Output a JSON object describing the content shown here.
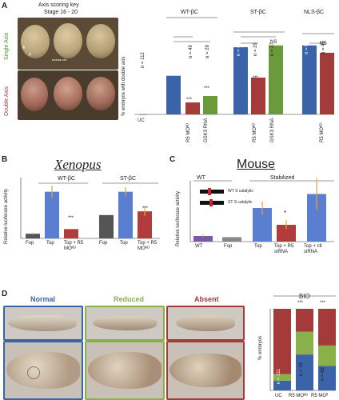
{
  "panelA": {
    "label": "A",
    "key_title": "Axis scoring key",
    "stage": "Stage 16 - 20",
    "single_axis": "Single Axis",
    "double_axis": "Double Axis",
    "orient_A": "A",
    "orient_P": "P",
    "mouse_label": "mouse ctrl",
    "ylabel": "% embryos with double axis",
    "groups": [
      "WT-βC",
      "ST-βC",
      "NLS-βC"
    ],
    "uc_label": "UC",
    "bar_labels": [
      "UC",
      "R5 MO^{KD}",
      "GSK3 RNA",
      "",
      "R5 MO^{KD}",
      "GSK3 RNA",
      "",
      "R5 MO^{KD}"
    ],
    "n_labels": [
      "n = 112",
      "n = 55",
      "n = 49",
      "n = 28",
      "n = 40",
      "n = 29",
      "n = 27",
      "n = 63",
      "n = 45"
    ],
    "sig": [
      "***",
      "***",
      "***",
      "NS",
      "NS"
    ]
  },
  "panelB": {
    "label": "B",
    "title": "Xenopus",
    "ylabel": "Relative luciferase activity",
    "group1": "WT-βC",
    "group2": "ST-βC",
    "x_labels": [
      "Fop",
      "Top",
      "Top + R5 MO^{KD}",
      "Fop",
      "Top",
      "Top + R5 MO^{KD}"
    ],
    "sig": [
      "***",
      "***"
    ]
  },
  "panelC": {
    "label": "C",
    "title": "Mouse",
    "ylabel": "Relative luciferase activity",
    "group_wt": "WT",
    "group_st": "Stabilized",
    "legend1": "WT S catalytic",
    "legend2": "ST S catalytic",
    "x_labels": [
      "WT",
      "Fop",
      "Top",
      "Top + R5 siRNA",
      "Top + ctl siRNA"
    ],
    "sig": [
      "*",
      ""
    ]
  },
  "panelD": {
    "label": "D",
    "cat_normal": "Normal",
    "cat_reduced": "Reduced",
    "cat_absent": "Absent",
    "bio": "BIO",
    "ylabel": "% embryos",
    "x_labels": [
      "UC",
      "R5 MO^{KD}",
      "R5 MO^{delta}"
    ],
    "n_labels": [
      "n = 111",
      "n = 29",
      "n = 68"
    ],
    "sig": [
      "***",
      "***"
    ],
    "colors": {
      "normal": "#3b63a7",
      "reduced": "#8ab04a",
      "absent": "#a23b39"
    }
  },
  "chart_data": [
    {
      "type": "bar",
      "title": "",
      "ylabel": "% embryos with double axis",
      "categories": [
        "UC",
        "WT-βC",
        "WT-βC + R5 MO",
        "WT-βC + GSK3 RNA",
        "ST-βC",
        "ST-βC + R5 MO",
        "ST-βC + GSK3 RNA",
        "NLS-βC",
        "NLS-βC + R5 MO"
      ],
      "values": [
        0,
        42,
        13,
        20,
        73,
        40,
        75,
        75,
        67
      ],
      "colors": [
        "#3b63a7",
        "#3b63a7",
        "#a23b39",
        "#6a9a3a",
        "#3b63a7",
        "#a23b39",
        "#6a9a3a",
        "#3b63a7",
        "#a23b39"
      ],
      "ylim": [
        0,
        100
      ]
    },
    {
      "type": "bar",
      "title": "Xenopus",
      "ylabel": "Relative luciferase activity",
      "categories": [
        "Fop",
        "Top",
        "Top + R5 MO",
        "Fop",
        "Top",
        "Top + R5 MO"
      ],
      "values": [
        0.1,
        1.0,
        0.2,
        0.5,
        1.0,
        0.58
      ],
      "errors": [
        0.02,
        0.13,
        0.0,
        0.0,
        0.1,
        0.1
      ],
      "colors": [
        "#555555",
        "#5b7fd0",
        "#b23b3b",
        "#555555",
        "#5b7fd0",
        "#b23b3b"
      ],
      "ylim": [
        0,
        1.2
      ]
    },
    {
      "type": "bar",
      "title": "Mouse",
      "ylabel": "Relative luciferase activity",
      "categories": [
        "WT",
        "Fop",
        "Top",
        "Top + R5 siRNA",
        "Top + ctl siRNA"
      ],
      "values": [
        0.1,
        0.08,
        0.6,
        0.3,
        0.85
      ],
      "errors": [
        0.02,
        0.0,
        0.12,
        0.08,
        0.28
      ],
      "colors": [
        "#7a5aa8",
        "#888888",
        "#5b7fd0",
        "#b23b3b",
        "#5b7fd0"
      ],
      "ylim": [
        0,
        1.0
      ]
    },
    {
      "type": "bar",
      "title": "",
      "ylabel": "% embryos",
      "categories": [
        "UC",
        "R5 MO",
        "R5 MO delta"
      ],
      "series": [
        {
          "name": "Normal",
          "values": [
            12,
            44,
            30
          ]
        },
        {
          "name": "Reduced",
          "values": [
            8,
            28,
            25
          ]
        },
        {
          "name": "Absent",
          "values": [
            80,
            28,
            45
          ]
        }
      ],
      "ylim": [
        0,
        100
      ]
    }
  ]
}
